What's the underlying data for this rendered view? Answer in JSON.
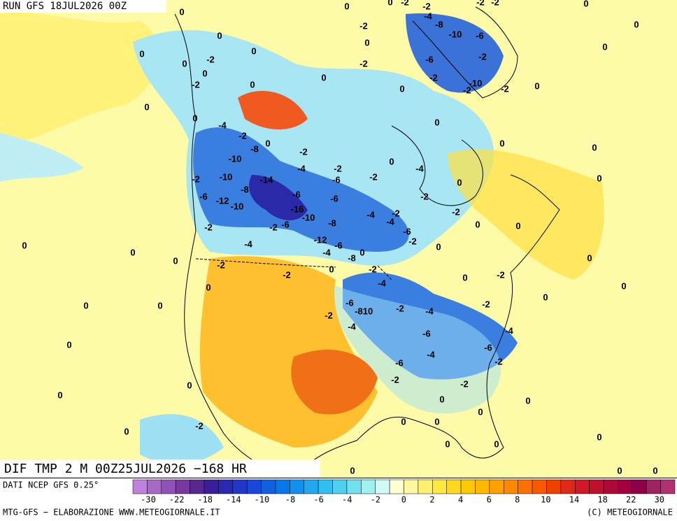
{
  "header": {
    "run": "RUN GFS 18JUL2026 00Z"
  },
  "map": {
    "title": "DIF TMP 2 M 00Z25JUL2026 −168 HR",
    "labels": [
      0,
      0,
      0,
      -2,
      -2,
      -2,
      -2,
      0,
      -4,
      -8,
      -10,
      -6,
      0,
      -2,
      0,
      0,
      0,
      0,
      -2,
      0,
      0,
      0,
      -6,
      -2,
      -2,
      0,
      -2,
      -10,
      -2,
      -2,
      0,
      -2,
      0,
      0,
      0,
      0,
      -4,
      -2,
      -8,
      0,
      -2,
      0,
      0,
      0,
      -10,
      -4,
      -2,
      0,
      -4,
      -2,
      -10,
      -14,
      -6,
      -2,
      0,
      0,
      -8,
      -6,
      -2,
      -6,
      -12,
      -6,
      -10,
      -16,
      -10,
      -4,
      -2,
      -2,
      -8,
      -4,
      -2,
      -2,
      -6,
      -6,
      0,
      0,
      -12,
      -6,
      -2,
      0,
      0,
      -4,
      -4,
      -8,
      0,
      0,
      0,
      -2,
      0,
      -2,
      -2,
      -2,
      0,
      0,
      -4,
      0,
      0,
      0,
      0,
      0,
      -6,
      -8,
      10,
      -2,
      -4,
      -2,
      -2,
      -4,
      -6,
      -4,
      0,
      -6,
      -4,
      -2,
      -6,
      -2,
      -2,
      0,
      0,
      0,
      0,
      0,
      0,
      -2,
      0,
      0,
      0,
      0,
      0,
      0,
      0,
      0
    ]
  },
  "colorbar": {
    "source": "DATI NCEP GFS 0.25°",
    "colors": [
      "#c080e0",
      "#a868c8",
      "#9050b8",
      "#7838a0",
      "#582890",
      "#3a1e9a",
      "#2828b0",
      "#2038c8",
      "#1848d8",
      "#1060e0",
      "#0878e8",
      "#1090f0",
      "#20a8f0",
      "#30c0f0",
      "#50d0f0",
      "#70e0f0",
      "#a0f0f0",
      "#d0fafa",
      "#ffffd0",
      "#fff8a0",
      "#fff070",
      "#ffe840",
      "#ffd820",
      "#ffc800",
      "#ffb800",
      "#ffa000",
      "#ff8800",
      "#ff7000",
      "#f85800",
      "#f04000",
      "#e02818",
      "#d01828",
      "#c01030",
      "#b00838",
      "#a00040",
      "#900048",
      "#a02060",
      "#b03070"
    ],
    "ticks": [
      -30,
      -22,
      -18,
      -14,
      -10,
      -8,
      -6,
      -4,
      -2,
      0,
      2,
      4,
      6,
      8,
      10,
      14,
      18,
      22,
      30
    ]
  },
  "footer": {
    "left": "MTG-GFS − ELABORAZIONE WWW.METEOGIORNALE.IT",
    "right": "(C) METEOGIORNALE"
  }
}
